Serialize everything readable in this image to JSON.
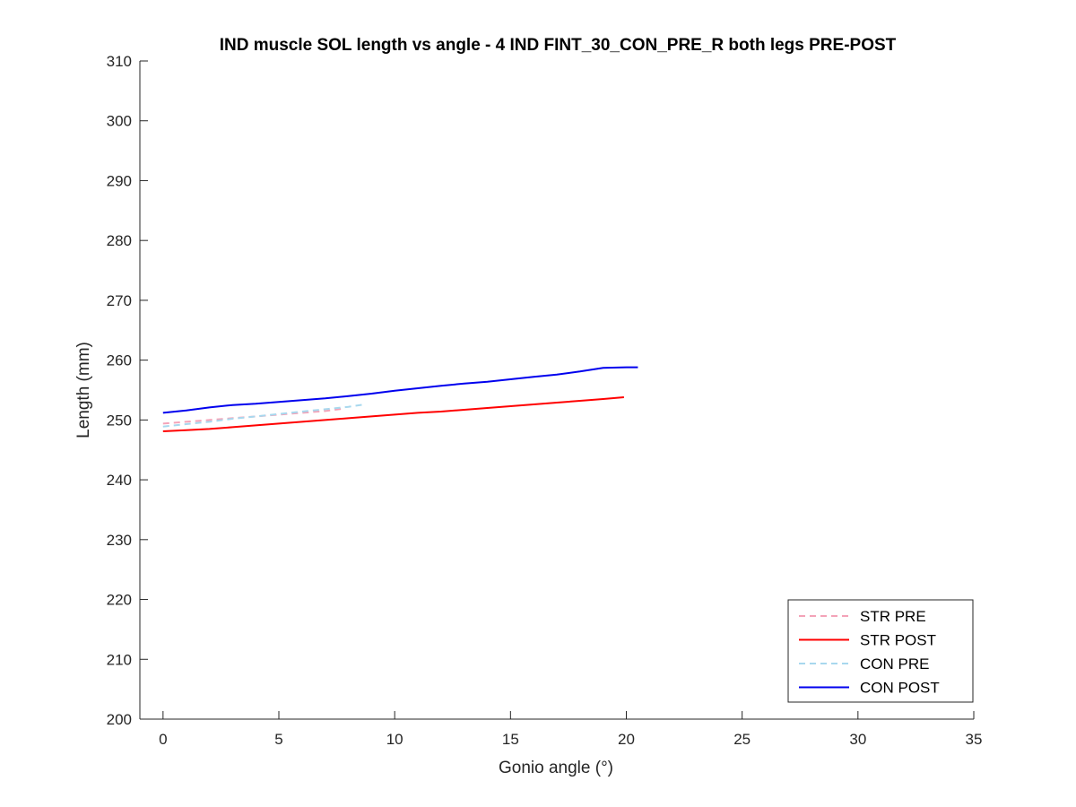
{
  "chart_data": {
    "type": "line",
    "title": "IND muscle SOL length vs angle - 4 IND FINT_30_CON_PRE_R both legs PRE-POST",
    "xlabel": "Gonio angle (°)",
    "ylabel": "Length (mm)",
    "xlim": [
      -1,
      35
    ],
    "ylim": [
      200,
      310
    ],
    "xticks": [
      0,
      5,
      10,
      15,
      20,
      25,
      30,
      35
    ],
    "yticks": [
      200,
      210,
      220,
      230,
      240,
      250,
      260,
      270,
      280,
      290,
      300,
      310
    ],
    "grid": false,
    "legend_position": "bottom-right",
    "series": [
      {
        "name": "STR PRE",
        "color": "#f4a3b8",
        "dash": "dashed",
        "x": [
          0,
          1,
          2,
          3,
          4,
          5,
          6,
          7,
          7.8
        ],
        "y": [
          249.4,
          249.7,
          250.0,
          250.3,
          250.6,
          250.9,
          251.2,
          251.5,
          251.9
        ]
      },
      {
        "name": "STR POST",
        "color": "#ff0000",
        "dash": "solid",
        "x": [
          0,
          1,
          2,
          3,
          4,
          5,
          6,
          7,
          8,
          9,
          10,
          11,
          12,
          13,
          14,
          15,
          16,
          17,
          18,
          19,
          19.9
        ],
        "y": [
          248.1,
          248.3,
          248.5,
          248.8,
          249.1,
          249.4,
          249.7,
          250.0,
          250.3,
          250.6,
          250.9,
          251.2,
          251.4,
          251.7,
          252.0,
          252.3,
          252.6,
          252.9,
          253.2,
          253.5,
          253.8
        ]
      },
      {
        "name": "CON PRE",
        "color": "#a8d8ee",
        "dash": "dashed",
        "x": [
          0,
          1,
          2,
          3,
          4,
          5,
          6,
          7,
          8,
          8.7
        ],
        "y": [
          248.9,
          249.3,
          249.7,
          250.2,
          250.6,
          251.0,
          251.4,
          251.8,
          252.2,
          252.6
        ]
      },
      {
        "name": "CON POST",
        "color": "#0000ee",
        "dash": "solid",
        "x": [
          0,
          1,
          2,
          3,
          4,
          5,
          6,
          7,
          8,
          9,
          10,
          11,
          12,
          13,
          14,
          15,
          16,
          17,
          18,
          19,
          20,
          20.5
        ],
        "y": [
          251.2,
          251.6,
          252.1,
          252.5,
          252.7,
          253.0,
          253.3,
          253.6,
          254.0,
          254.4,
          254.9,
          255.3,
          255.7,
          256.1,
          256.4,
          256.8,
          257.2,
          257.6,
          258.1,
          258.7,
          258.8,
          258.8
        ]
      }
    ]
  }
}
